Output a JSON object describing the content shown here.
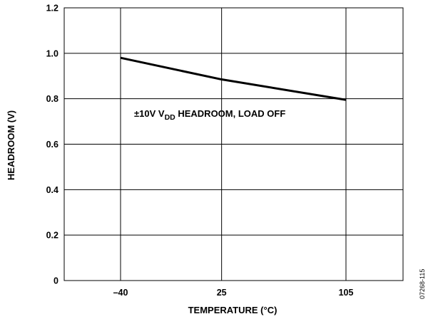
{
  "chart_data": {
    "type": "line",
    "title": "",
    "xlabel": "TEMPERATURE (°C)",
    "ylabel": "HEADROOM (V)",
    "x_ticks": [
      "–40",
      "25",
      "105"
    ],
    "x_tick_values": [
      -40,
      25,
      105
    ],
    "xlim": [
      -40,
      105
    ],
    "y_ticks": [
      "0",
      "0.2",
      "0.4",
      "0.6",
      "0.8",
      "1.0",
      "1.2"
    ],
    "y_tick_values": [
      0,
      0.2,
      0.4,
      0.6,
      0.8,
      1.0,
      1.2
    ],
    "ylim": [
      0,
      1.2
    ],
    "grid": true,
    "series": [
      {
        "x": [
          -40,
          25,
          105
        ],
        "y": [
          0.98,
          0.885,
          0.795
        ]
      }
    ],
    "annotation": {
      "prefix": "±10V V",
      "subscript": "DD",
      "suffix": " HEADROOM, LOAD OFF"
    },
    "figure_id": "07268-115",
    "line_color": "#000000"
  }
}
